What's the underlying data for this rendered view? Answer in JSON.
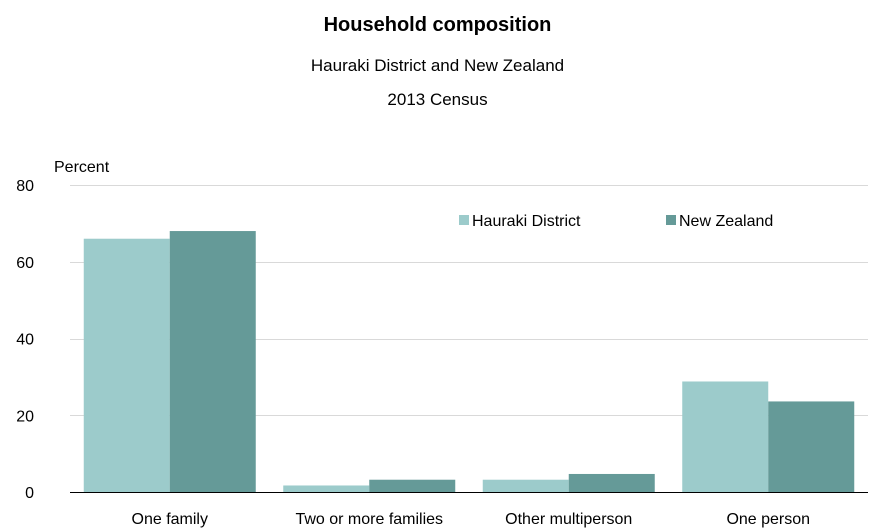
{
  "chart_data": {
    "type": "bar",
    "title": "Household composition",
    "subtitle": "Hauraki District and New Zealand",
    "subtitle2": "2013 Census",
    "ylabel": "Percent",
    "xlabel": "",
    "ylim": [
      0,
      80
    ],
    "yticks": [
      0,
      20,
      40,
      60,
      80
    ],
    "grid": true,
    "legend_position": "top-right",
    "categories": [
      "One family",
      "Two or more families",
      "Other multiperson",
      "One person"
    ],
    "series": [
      {
        "name": "Hauraki District",
        "color": "#9CCBCB",
        "values": [
          66,
          1.7,
          3.2,
          28.8
        ]
      },
      {
        "name": "New Zealand",
        "color": "#659A98",
        "values": [
          68,
          3.2,
          4.7,
          23.6
        ]
      }
    ]
  }
}
